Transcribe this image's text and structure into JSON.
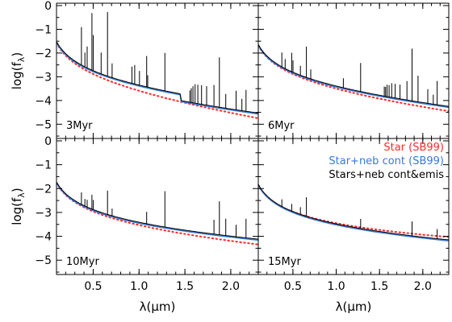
{
  "chart_data": {
    "type": "line",
    "ylabel": "log(f",
    "ylabel_sub": "λ",
    "ylabel_close": ")",
    "xlabel": "λ(μm)",
    "xlim": [
      0.1,
      2.3
    ],
    "ylim": [
      -5.6,
      0.1
    ],
    "x_ticks": [
      0.5,
      1.0,
      1.5,
      2.0
    ],
    "x_tick_labels": [
      "0.5",
      "1.0",
      "1.5",
      "2.0"
    ],
    "y_ticks": [
      0,
      -1,
      -2,
      -3,
      -4,
      -5
    ],
    "y_tick_labels": [
      "0",
      "−1",
      "−2",
      "−3",
      "−4",
      "−5"
    ],
    "legend": [
      {
        "label": "Star (SB99)",
        "color": "#ff2a2a"
      },
      {
        "label": "Star+neb cont (SB99)",
        "color": "#3a78d8"
      },
      {
        "label": "Stars+neb cont&emis",
        "color": "#000000"
      }
    ],
    "series_styles": {
      "star": {
        "color": "#ff2a2a",
        "style": "dotted"
      },
      "neb_cont": {
        "color": "#3a78d8",
        "style": "solid"
      },
      "neb_emis": {
        "color": "#000000",
        "style": "solid"
      }
    },
    "panels": [
      {
        "label": "3Myr",
        "star": {
          "a": -3.15,
          "b": 1.62,
          "c": 0.44
        },
        "cont": {
          "a": -3.15,
          "b": 1.62,
          "c": 0.24
        },
        "jump": {
          "x": 1.46,
          "dy": 0.28
        },
        "lines": [
          [
            0.372,
            1.6
          ],
          [
            0.434,
            0.9
          ],
          [
            0.486,
            2.4
          ],
          [
            0.501,
            1.5
          ],
          [
            0.656,
            2.7
          ],
          [
            0.587,
            0.9
          ],
          [
            0.706,
            0.6
          ],
          [
            1.083,
            1.3
          ],
          [
            1.282,
            1.6
          ],
          [
            1.094,
            0.5
          ],
          [
            1.876,
            2.1
          ],
          [
            1.817,
            0.9
          ],
          [
            1.737,
            0.8
          ],
          [
            1.681,
            0.8
          ],
          [
            1.641,
            0.8
          ],
          [
            1.611,
            0.8
          ],
          [
            1.588,
            0.7
          ],
          [
            1.57,
            0.6
          ],
          [
            1.555,
            0.5
          ],
          [
            2.166,
            0.9
          ],
          [
            2.058,
            0.8
          ],
          [
            1.945,
            0.6
          ],
          [
            2.121,
            0.5
          ],
          [
            0.41,
            0.6
          ],
          [
            0.953,
            0.8
          ],
          [
            0.923,
            0.7
          ],
          [
            1.005,
            0.6
          ]
        ]
      },
      {
        "label": "6Myr",
        "star": {
          "a": -3.2,
          "b": 1.55,
          "c": 0.3
        },
        "cont": {
          "a": -3.2,
          "b": 1.55,
          "c": 0.23
        },
        "jump": {
          "x": 1.46,
          "dy": 0.0
        },
        "lines": [
          [
            0.372,
            0.6
          ],
          [
            0.486,
            0.8
          ],
          [
            0.501,
            0.5
          ],
          [
            0.656,
            1.3
          ],
          [
            0.587,
            0.4
          ],
          [
            0.706,
            0.4
          ],
          [
            1.083,
            0.4
          ],
          [
            1.282,
            1.2
          ],
          [
            1.876,
            2.2
          ],
          [
            1.945,
            1.1
          ],
          [
            1.817,
            0.8
          ],
          [
            1.737,
            0.6
          ],
          [
            1.681,
            0.6
          ],
          [
            1.641,
            0.6
          ],
          [
            1.611,
            0.5
          ],
          [
            1.588,
            0.5
          ],
          [
            1.57,
            0.4
          ],
          [
            1.555,
            0.4
          ],
          [
            2.166,
            1.0
          ],
          [
            2.058,
            0.6
          ],
          [
            2.121,
            0.4
          ],
          [
            0.41,
            0.4
          ]
        ]
      },
      {
        "label": "10Myr",
        "star": {
          "a": -3.35,
          "b": 1.6,
          "c": 0.18
        },
        "cont": {
          "a": -3.35,
          "b": 1.6,
          "c": 0.1
        },
        "jump": {
          "x": 1.46,
          "dy": 0.0
        },
        "lines": [
          [
            0.372,
            0.5
          ],
          [
            0.486,
            0.6
          ],
          [
            0.501,
            0.4
          ],
          [
            0.656,
            1.0
          ],
          [
            0.706,
            0.3
          ],
          [
            1.083,
            0.5
          ],
          [
            1.282,
            1.5
          ],
          [
            1.876,
            1.4
          ],
          [
            1.945,
            0.7
          ],
          [
            1.817,
            0.6
          ],
          [
            2.166,
            0.8
          ],
          [
            2.058,
            0.5
          ],
          [
            0.41,
            0.3
          ],
          [
            0.434,
            0.3
          ]
        ]
      },
      {
        "label": "15Myr",
        "star": {
          "a": -3.45,
          "b": 1.6,
          "c": 0.0
        },
        "cont": {
          "a": -3.45,
          "b": 1.6,
          "c": 0.07
        },
        "jump": {
          "x": 1.46,
          "dy": 0.0
        },
        "lines": [
          [
            0.372,
            0.3
          ],
          [
            0.486,
            0.3
          ],
          [
            0.656,
            0.8
          ],
          [
            0.587,
            0.3
          ],
          [
            1.282,
            0.4
          ],
          [
            1.876,
            0.6
          ],
          [
            2.166,
            0.4
          ]
        ]
      }
    ]
  }
}
